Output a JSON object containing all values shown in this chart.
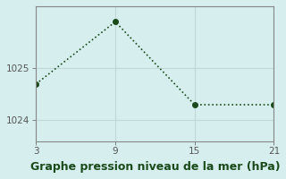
{
  "x": [
    3,
    9,
    15,
    21
  ],
  "y": [
    1024.7,
    1025.9,
    1024.3,
    1024.3
  ],
  "line_color": "#1a4a1a",
  "marker": "o",
  "marker_size": 4,
  "background_color": "#d6eeee",
  "grid_color": "#c0d8d8",
  "xlabel": "Graphe pression niveau de la mer (hPa)",
  "xlabel_color": "#1a4a1a",
  "xlabel_fontsize": 9,
  "tick_color": "#555555",
  "tick_fontsize": 7.5,
  "xlim": [
    3,
    21
  ],
  "ylim": [
    1023.6,
    1026.2
  ],
  "xticks": [
    3,
    9,
    15,
    21
  ],
  "yticks": [
    1024,
    1025
  ],
  "spine_color": "#888888"
}
